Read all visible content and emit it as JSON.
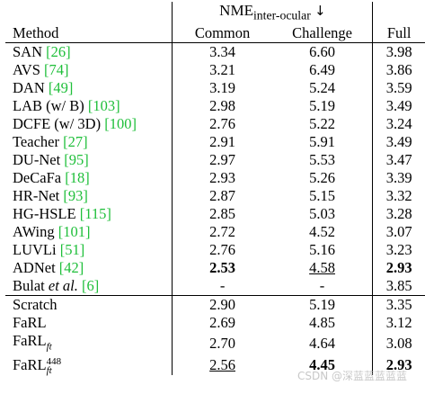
{
  "header": {
    "nme": "NME",
    "nme_sub": "inter-ocular",
    "arrow": "↓",
    "method": "Method",
    "common": "Common",
    "challenge": "Challenge",
    "full": "Full"
  },
  "rows": [
    {
      "name": "SAN ",
      "cite": "[26]",
      "common": "3.34",
      "challenge": "6.60",
      "full": "3.98"
    },
    {
      "name": "AVS ",
      "cite": "[74]",
      "common": "3.21",
      "challenge": "6.49",
      "full": "3.86"
    },
    {
      "name": "DAN ",
      "cite": "[49]",
      "common": "3.19",
      "challenge": "5.24",
      "full": "3.59"
    },
    {
      "name": "LAB (w/ B) ",
      "cite": "[103]",
      "common": "2.98",
      "challenge": "5.19",
      "full": "3.49"
    },
    {
      "name": "DCFE (w/ 3D) ",
      "cite": "[100]",
      "common": "2.76",
      "challenge": "5.22",
      "full": "3.24"
    },
    {
      "name": "Teacher ",
      "cite": "[27]",
      "common": "2.91",
      "challenge": "5.91",
      "full": "3.49"
    },
    {
      "name": "DU-Net ",
      "cite": "[95]",
      "common": "2.97",
      "challenge": "5.53",
      "full": "3.47"
    },
    {
      "name": "DeCaFa ",
      "cite": "[18]",
      "common": "2.93",
      "challenge": "5.26",
      "full": "3.39"
    },
    {
      "name": "HR-Net ",
      "cite": "[93]",
      "common": "2.87",
      "challenge": "5.15",
      "full": "3.32"
    },
    {
      "name": "HG-HSLE ",
      "cite": "[115]",
      "common": "2.85",
      "challenge": "5.03",
      "full": "3.28"
    },
    {
      "name": "AWing ",
      "cite": "[101]",
      "common": "2.72",
      "challenge": "4.52",
      "full": "3.07"
    },
    {
      "name": "LUVLi ",
      "cite": "[51]",
      "common": "2.76",
      "challenge": "5.16",
      "full": "3.23"
    },
    {
      "name": "ADNet ",
      "cite": "[42]",
      "common": "2.53",
      "challenge": "4.58",
      "full": "2.93"
    }
  ],
  "bulat": {
    "name_a": "Bulat ",
    "name_b": "et al.",
    "name_c": " ",
    "cite": "[6]",
    "common": "-",
    "challenge": "-",
    "full": "3.85"
  },
  "ours": [
    {
      "name": "Scratch",
      "common": "2.90",
      "challenge": "5.19",
      "full": "3.35"
    },
    {
      "name": "FaRL",
      "common": "2.69",
      "challenge": "4.85",
      "full": "3.12"
    }
  ],
  "farl_ft": {
    "name": "FaRL",
    "sub": "ft",
    "common": "2.70",
    "challenge": "4.64",
    "full": "3.08"
  },
  "farl_448": {
    "name": "FaRL",
    "sup": "448",
    "sub": "ft",
    "common": "2.56",
    "challenge": "4.45",
    "full": "2.93"
  },
  "watermark": "CSDN @深蓝蓝蓝蓝蓝"
}
